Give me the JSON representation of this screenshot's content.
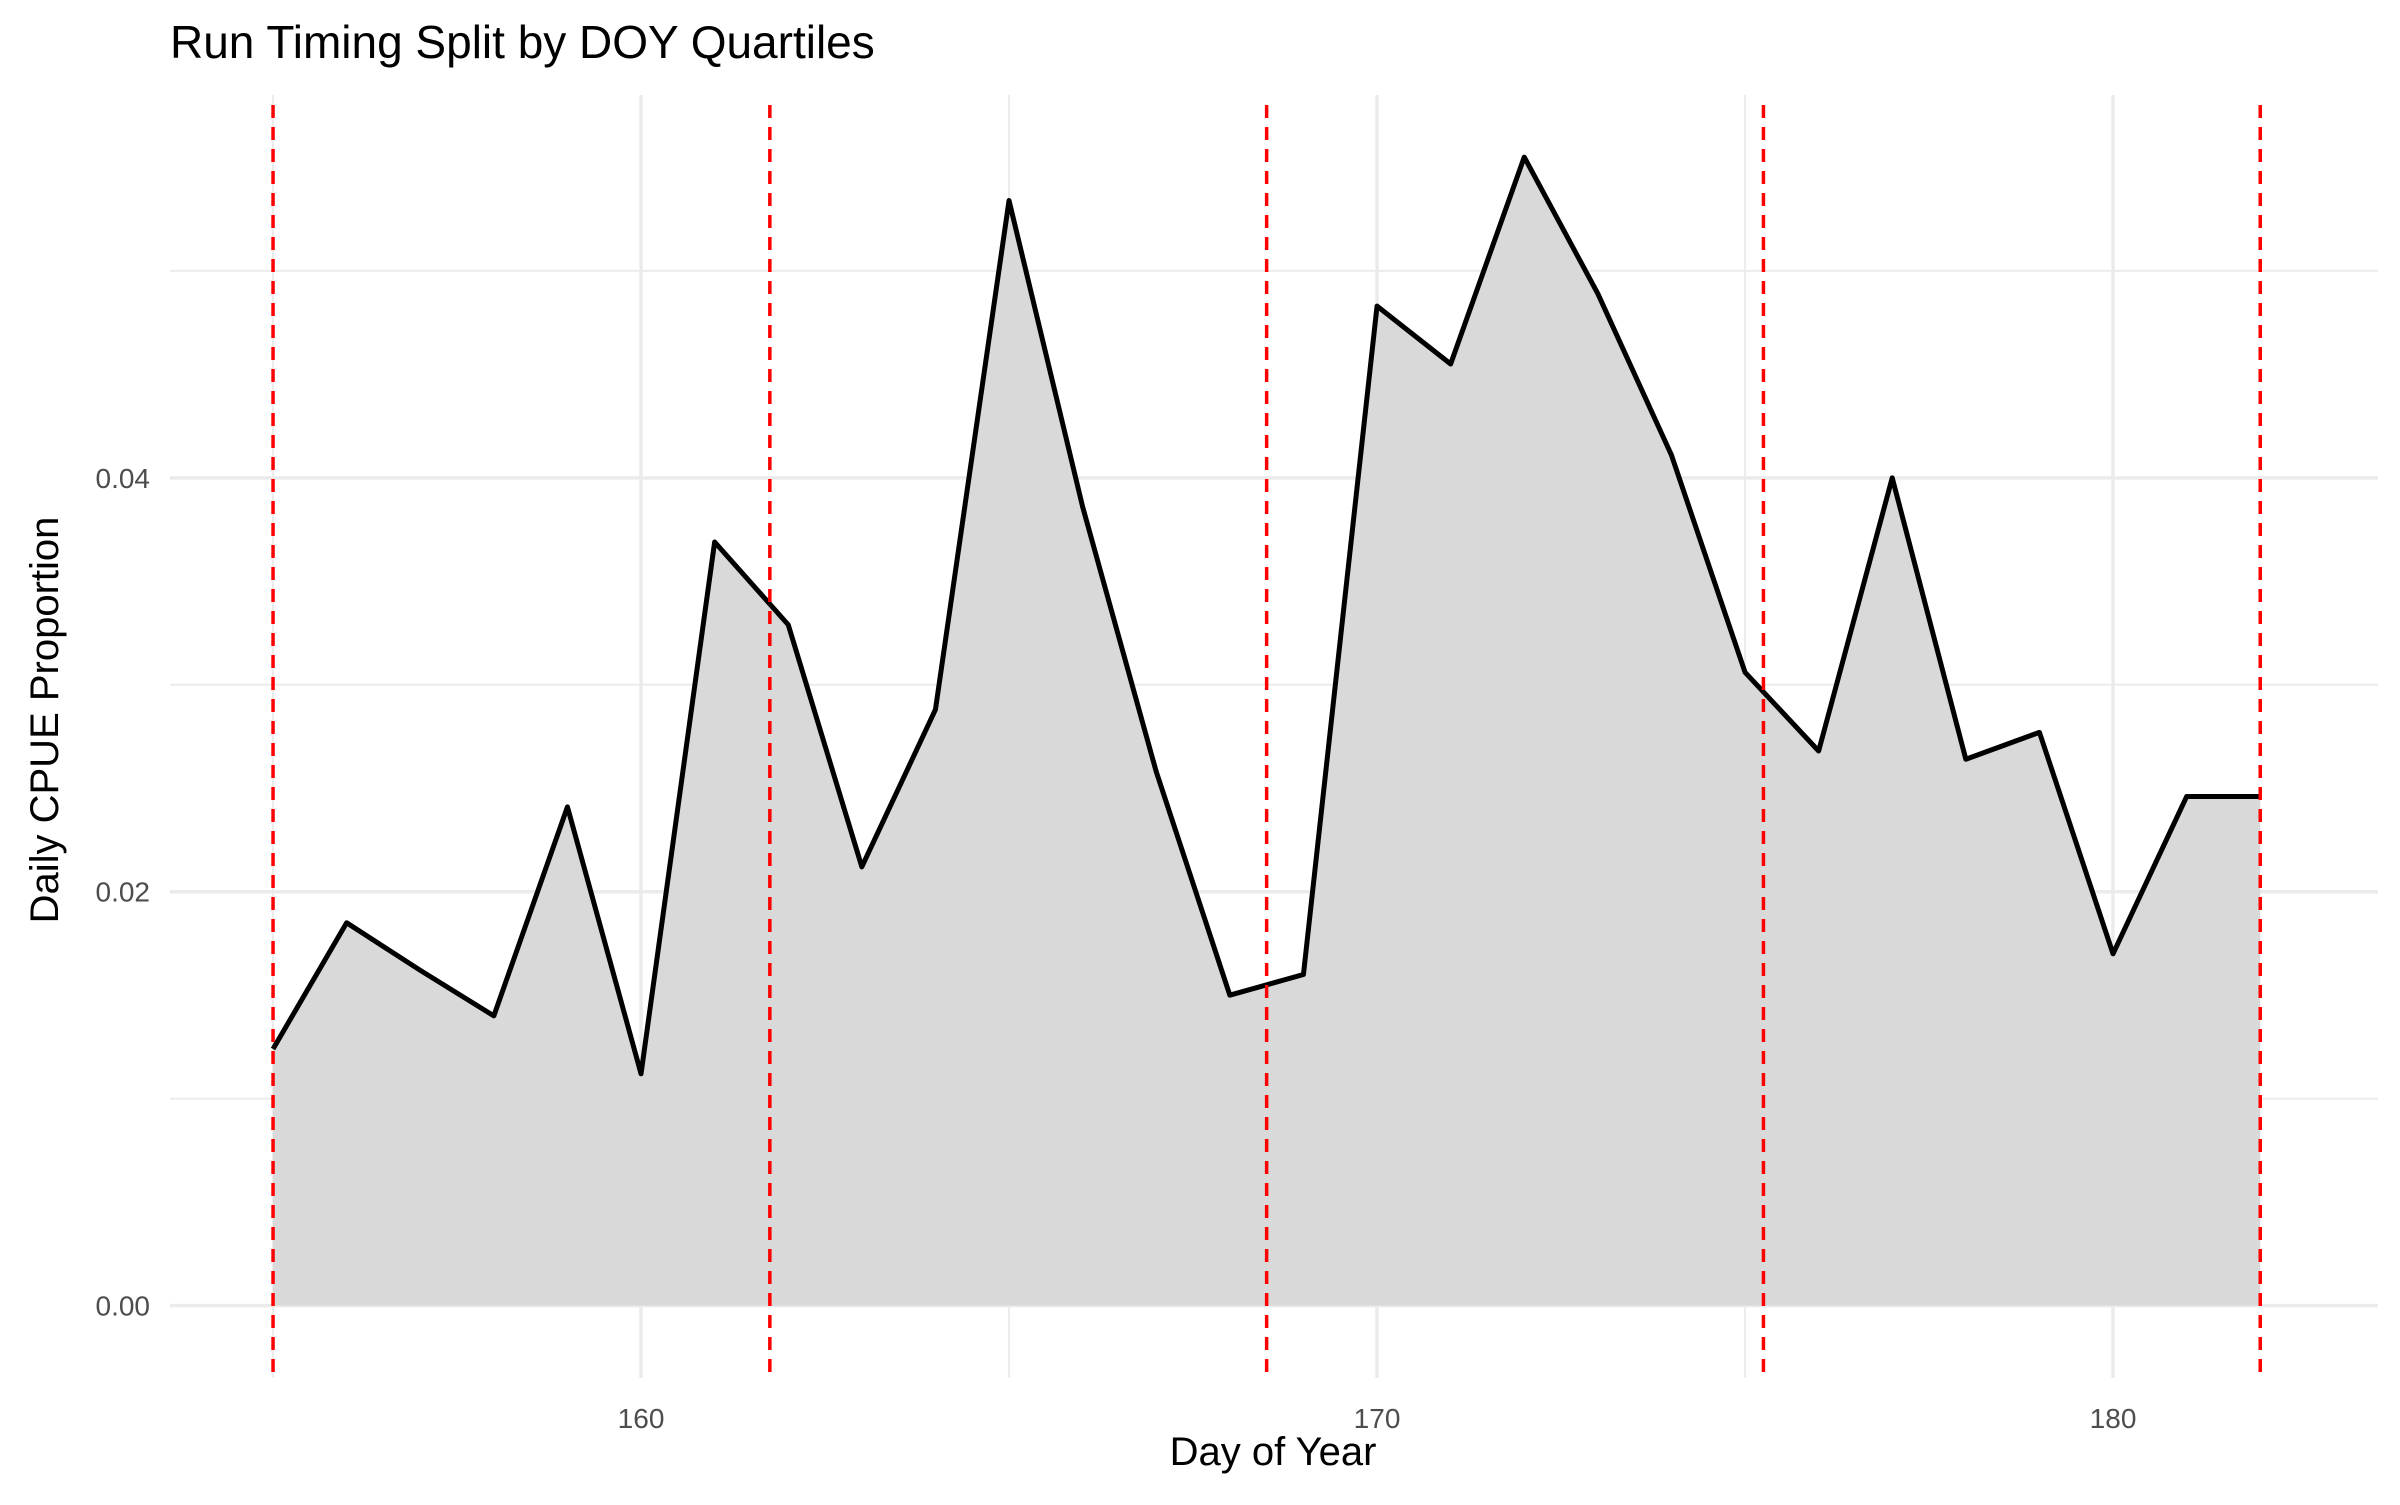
{
  "chart_data": {
    "type": "area",
    "title": "Run Timing Split by DOY Quartiles",
    "xlabel": "Day of Year",
    "ylabel": "Daily CPUE Proportion",
    "xlim": [
      153.6,
      183.6
    ],
    "ylim": [
      -0.0035,
      0.0585
    ],
    "x_ticks": [
      160,
      170,
      180
    ],
    "x_tick_labels": [
      "160",
      "170",
      "180"
    ],
    "y_ticks": [
      0,
      0.02,
      0.04
    ],
    "y_tick_labels": [
      "0.00",
      "0.02",
      "0.04"
    ],
    "x": [
      155,
      156,
      157,
      158,
      159,
      160,
      161,
      162,
      163,
      164,
      165,
      166,
      167,
      168,
      169,
      170,
      171,
      172,
      173,
      174,
      175,
      176,
      177,
      178,
      179,
      180,
      181,
      182
    ],
    "values": [
      0.0124,
      0.0185,
      0.0162,
      0.014,
      0.0241,
      0.0112,
      0.0369,
      0.0329,
      0.0212,
      0.0288,
      0.0534,
      0.0386,
      0.0258,
      0.015,
      0.016,
      0.0483,
      0.0455,
      0.0555,
      0.0489,
      0.0411,
      0.0306,
      0.0268,
      0.04,
      0.0264,
      0.0277,
      0.017,
      0.0246,
      0.0246
    ],
    "quartile_lines": [
      155,
      161.75,
      168.5,
      175.25,
      182
    ],
    "grid": true,
    "colors": {
      "area_fill": "#d9d9d9",
      "line": "#000000",
      "quartile_line": "#ff0000",
      "grid": "#ebebeb",
      "tick_label": "#4d4d4d"
    }
  }
}
